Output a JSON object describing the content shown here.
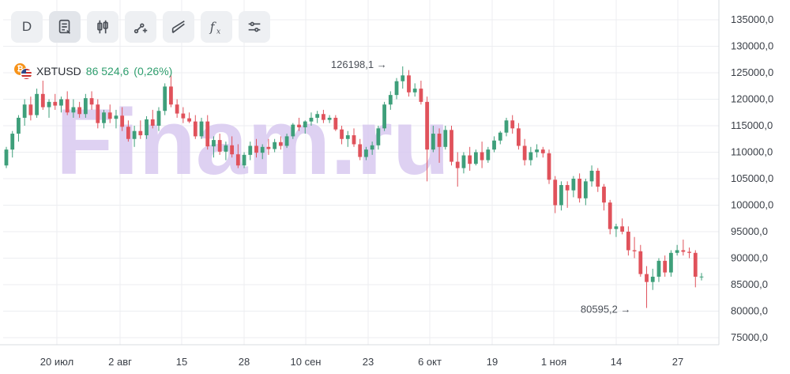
{
  "toolbar": {
    "interval_label": "D",
    "buttons": [
      "notes-icon",
      "candles-icon",
      "drawing-icon",
      "trendline-icon",
      "function-icon",
      "settings-icon"
    ]
  },
  "ticker": {
    "symbol": "XBTUSD",
    "price": "86 524,6",
    "change": "(0,26%)",
    "change_color": "#2f9e6e"
  },
  "colors": {
    "up": "#3e9f7a",
    "down": "#e0525b",
    "watermark": "#d9c9f0",
    "grid": "#eceef1"
  },
  "watermark": "Finam.ru",
  "chart_data": {
    "type": "candlestick",
    "ylim": [
      72500,
      137500
    ],
    "y_ticks": [
      "135000,0",
      "130000,0",
      "125000,0",
      "120000,0",
      "115000,0",
      "110000,0",
      "105000,0",
      "100000,0",
      "95000,0",
      "90000,0",
      "85000,0",
      "80000,0",
      "75000,0"
    ],
    "x_tick_labels": [
      "20 июл",
      "2 авг",
      "15",
      "28",
      "10 сен",
      "23",
      "6 окт",
      "19",
      "1 ноя",
      "14",
      "27"
    ],
    "annotations": [
      {
        "text": "126198,1",
        "value": 126198.1,
        "type": "high"
      },
      {
        "text": "80595,2",
        "value": 80595.2,
        "type": "low"
      }
    ],
    "candles": [
      [
        107500,
        111000,
        107000,
        110500
      ],
      [
        110500,
        114000,
        109000,
        113500
      ],
      [
        113500,
        117000,
        112000,
        116500
      ],
      [
        116500,
        120000,
        115000,
        119000
      ],
      [
        119000,
        120500,
        116000,
        117000
      ],
      [
        117000,
        122000,
        116500,
        121000
      ],
      [
        121000,
        123500,
        118000,
        118500
      ],
      [
        118500,
        120000,
        116500,
        119500
      ],
      [
        119500,
        121000,
        118000,
        118800
      ],
      [
        118800,
        120500,
        117500,
        120000
      ],
      [
        120000,
        121500,
        117000,
        117500
      ],
      [
        117500,
        120000,
        116500,
        118500
      ],
      [
        118500,
        119500,
        116500,
        117200
      ],
      [
        117200,
        121000,
        116500,
        120200
      ],
      [
        120200,
        121500,
        118000,
        119000
      ],
      [
        119000,
        120000,
        114500,
        115500
      ],
      [
        115500,
        118000,
        114500,
        117500
      ],
      [
        117500,
        119000,
        115500,
        116300
      ],
      [
        116300,
        118000,
        114500,
        116900
      ],
      [
        116900,
        118500,
        114000,
        114800
      ],
      [
        114800,
        116000,
        112000,
        112500
      ],
      [
        112500,
        115000,
        111000,
        114000
      ],
      [
        114000,
        116000,
        112500,
        113200
      ],
      [
        113200,
        116800,
        112500,
        116200
      ],
      [
        116200,
        118000,
        114500,
        115000
      ],
      [
        115000,
        118500,
        114000,
        117800
      ],
      [
        117800,
        123000,
        117000,
        122400
      ],
      [
        122400,
        124500,
        118500,
        119000
      ],
      [
        119000,
        120000,
        116500,
        117300
      ],
      [
        117300,
        118500,
        115500,
        116400
      ],
      [
        116400,
        117500,
        115500,
        115800
      ],
      [
        115800,
        117000,
        112500,
        113000
      ],
      [
        113000,
        116500,
        112500,
        115800
      ],
      [
        115800,
        117000,
        110500,
        111100
      ],
      [
        111100,
        113000,
        109000,
        112300
      ],
      [
        112300,
        113500,
        109500,
        110100
      ],
      [
        110100,
        112000,
        108500,
        111300
      ],
      [
        111300,
        113000,
        109000,
        109600
      ],
      [
        109600,
        111500,
        107000,
        107500
      ],
      [
        107500,
        110000,
        107000,
        109500
      ],
      [
        109500,
        112000,
        108500,
        111200
      ],
      [
        111200,
        112500,
        109000,
        109900
      ],
      [
        109900,
        111500,
        108700,
        111000
      ],
      [
        111000,
        112500,
        109500,
        110600
      ],
      [
        110600,
        112500,
        110000,
        111900
      ],
      [
        111900,
        113000,
        110500,
        111200
      ],
      [
        111200,
        113500,
        110800,
        113000
      ],
      [
        113000,
        115500,
        112500,
        115200
      ],
      [
        115200,
        116500,
        114000,
        114700
      ],
      [
        114700,
        116000,
        113500,
        115800
      ],
      [
        115800,
        117500,
        115000,
        116500
      ],
      [
        116500,
        117800,
        115500,
        117200
      ],
      [
        117200,
        118000,
        115500,
        116100
      ],
      [
        116100,
        117000,
        115500,
        116500
      ],
      [
        116500,
        117000,
        114000,
        114300
      ],
      [
        114300,
        115000,
        111500,
        112500
      ],
      [
        112500,
        114000,
        111000,
        113200
      ],
      [
        113200,
        114500,
        111000,
        111500
      ],
      [
        111500,
        112500,
        108500,
        109100
      ],
      [
        109100,
        111000,
        108500,
        110500
      ],
      [
        110500,
        112000,
        109500,
        111300
      ],
      [
        111300,
        115000,
        110500,
        114500
      ],
      [
        114500,
        119500,
        114000,
        119000
      ],
      [
        119000,
        121500,
        118000,
        120800
      ],
      [
        120800,
        124000,
        120000,
        123400
      ],
      [
        123400,
        126200,
        122000,
        124500
      ],
      [
        124500,
        125500,
        120500,
        121300
      ],
      [
        121300,
        123000,
        120500,
        122000
      ],
      [
        122000,
        123500,
        119000,
        119500
      ],
      [
        119500,
        120500,
        104500,
        110500
      ],
      [
        110500,
        115000,
        110000,
        113500
      ],
      [
        113500,
        114500,
        108000,
        111000
      ],
      [
        111000,
        115000,
        110500,
        114200
      ],
      [
        114200,
        115000,
        107500,
        108200
      ],
      [
        108200,
        110000,
        103500,
        107000
      ],
      [
        107000,
        110000,
        106000,
        109400
      ],
      [
        109400,
        111000,
        106500,
        107800
      ],
      [
        107800,
        110500,
        107500,
        110000
      ],
      [
        110000,
        112000,
        107000,
        108500
      ],
      [
        108500,
        111000,
        108000,
        110500
      ],
      [
        110500,
        113000,
        110000,
        112200
      ],
      [
        112200,
        114000,
        111500,
        113700
      ],
      [
        113700,
        116500,
        113000,
        116000
      ],
      [
        116000,
        117000,
        113500,
        114500
      ],
      [
        114500,
        115500,
        110500,
        111200
      ],
      [
        111200,
        112500,
        107500,
        108500
      ],
      [
        108500,
        111000,
        107500,
        110000
      ],
      [
        110000,
        111500,
        109000,
        110500
      ],
      [
        110500,
        111000,
        109000,
        109800
      ],
      [
        109800,
        110500,
        104000,
        104800
      ],
      [
        104800,
        105500,
        98500,
        100000
      ],
      [
        100000,
        104500,
        99000,
        103800
      ],
      [
        103800,
        104500,
        99500,
        102800
      ],
      [
        102800,
        105500,
        101500,
        105000
      ],
      [
        105000,
        106000,
        100500,
        101300
      ],
      [
        101300,
        105000,
        100000,
        104500
      ],
      [
        104500,
        107500,
        103500,
        106500
      ],
      [
        106500,
        107000,
        102500,
        103500
      ],
      [
        103500,
        104000,
        99000,
        100500
      ],
      [
        100500,
        101000,
        94500,
        95500
      ],
      [
        95500,
        96500,
        94000,
        96000
      ],
      [
        96000,
        97500,
        94500,
        95000
      ],
      [
        95000,
        96000,
        90500,
        91500
      ],
      [
        91500,
        94000,
        90000,
        91300
      ],
      [
        91300,
        92500,
        86500,
        87000
      ],
      [
        87000,
        88500,
        80600,
        85500
      ],
      [
        85500,
        88000,
        84000,
        86500
      ],
      [
        86500,
        90000,
        85500,
        89500
      ],
      [
        89500,
        90500,
        86500,
        87300
      ],
      [
        87300,
        91500,
        86500,
        91000
      ],
      [
        91000,
        92500,
        90500,
        91500
      ],
      [
        91500,
        93500,
        90500,
        91200
      ],
      [
        91200,
        92000,
        90000,
        91000
      ],
      [
        91000,
        91500,
        84500,
        86500
      ],
      [
        86500,
        87200,
        85800,
        86524
      ]
    ]
  }
}
